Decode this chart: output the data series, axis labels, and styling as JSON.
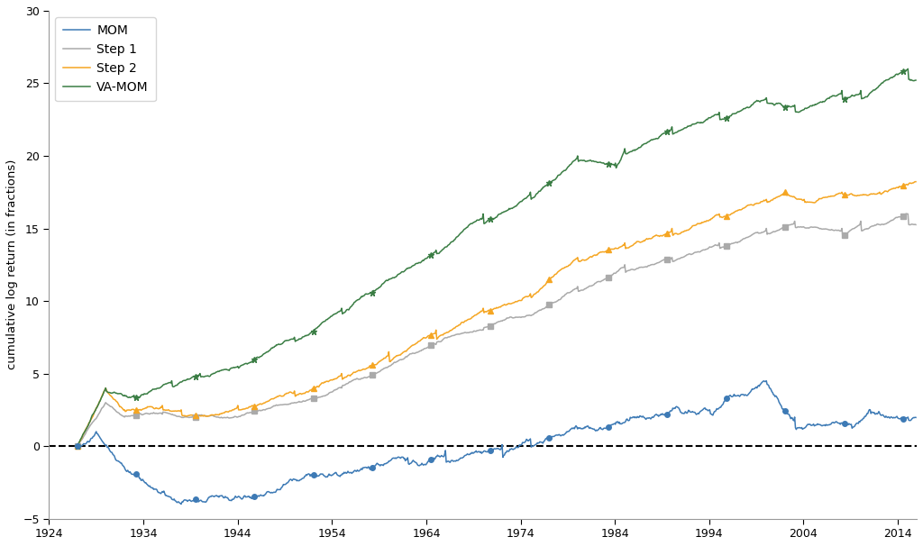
{
  "ylabel": "cumulative log return (in fractions)",
  "xlim": [
    1924,
    2016
  ],
  "ylim": [
    -5,
    30
  ],
  "yticks": [
    -5,
    0,
    5,
    10,
    15,
    20,
    25,
    30
  ],
  "xticks": [
    1924,
    1934,
    1944,
    1954,
    1964,
    1974,
    1984,
    1994,
    2004,
    2014
  ],
  "colors": {
    "MOM": "#3d7ab5",
    "Step1": "#aaaaaa",
    "Step2": "#f5a623",
    "VAMOM": "#3a7d44"
  },
  "figsize": [
    10.24,
    6.06
  ],
  "dpi": 100,
  "legend_labels": [
    "MOM",
    "Step 1",
    "Step 2",
    "VA-MOM"
  ],
  "background_color": "#ffffff"
}
